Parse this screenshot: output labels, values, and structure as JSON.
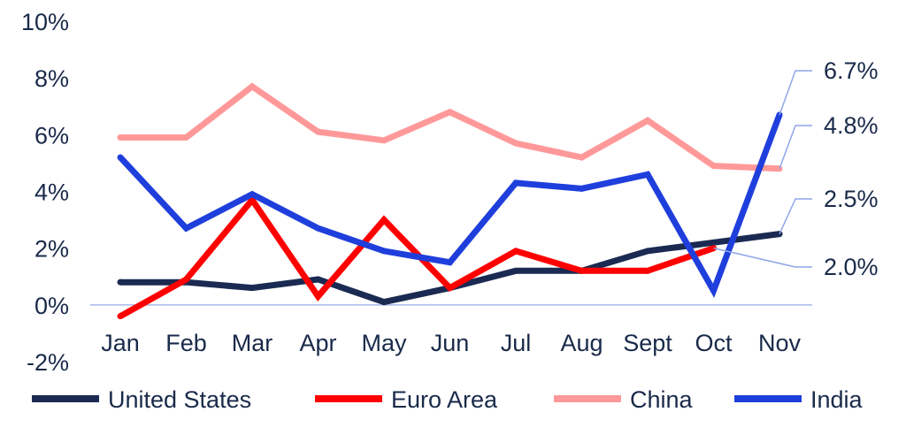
{
  "chart_data": {
    "type": "line",
    "categories": [
      "Jan",
      "Feb",
      "Mar",
      "Apr",
      "May",
      "Jun",
      "Jul",
      "Aug",
      "Sept",
      "Oct",
      "Nov"
    ],
    "ylim": [
      -2,
      10
    ],
    "yticks": [
      -2,
      0,
      2,
      4,
      6,
      8,
      10
    ],
    "ytick_labels": [
      "-2%",
      "0%",
      "2%",
      "4%",
      "6%",
      "8%",
      "10%"
    ],
    "series": [
      {
        "name": "United States",
        "color": "#1b2a52",
        "values": [
          0.8,
          0.8,
          0.6,
          0.9,
          0.1,
          0.6,
          1.2,
          1.2,
          1.9,
          2.2,
          2.5
        ]
      },
      {
        "name": "Euro Area",
        "color": "#ff0000",
        "values": [
          -0.4,
          0.9,
          3.7,
          0.3,
          3.0,
          0.6,
          1.9,
          1.2,
          1.2,
          2.0,
          null
        ]
      },
      {
        "name": "China",
        "color": "#ff9999",
        "values": [
          5.9,
          5.9,
          7.7,
          6.1,
          5.8,
          6.8,
          5.7,
          5.2,
          6.5,
          4.9,
          4.8
        ]
      },
      {
        "name": "India",
        "color": "#1f3fdc",
        "values": [
          5.2,
          2.7,
          3.9,
          2.7,
          1.9,
          1.5,
          4.3,
          4.1,
          4.6,
          0.5,
          6.7
        ]
      }
    ],
    "callouts": [
      {
        "label": "6.7%",
        "value": 6.7,
        "series": "India"
      },
      {
        "label": "4.8%",
        "value": 4.8,
        "series": "China"
      },
      {
        "label": "2.5%",
        "value": 2.5,
        "series": "United States"
      },
      {
        "label": "2.0%",
        "value": 2.0,
        "series": "Euro Area"
      }
    ],
    "legend_position": "bottom",
    "grid": false,
    "zero_line_color": "#a8b8e8"
  }
}
